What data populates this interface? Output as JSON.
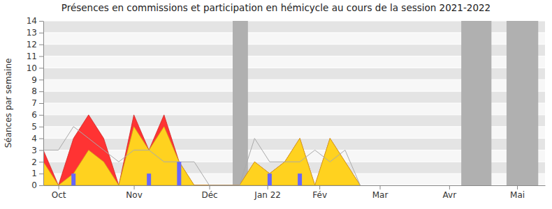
{
  "chart_data": {
    "type": "area",
    "title": "Présences en commissions et participation en hémicycle au cours de la session 2021-2022",
    "y_label": "Séances par semaine",
    "x": [
      0,
      1,
      2,
      3,
      4,
      5,
      6,
      7,
      8,
      9,
      10,
      11,
      12,
      13,
      14,
      15,
      16,
      17,
      18,
      19,
      20,
      21
    ],
    "xlim": [
      0,
      33.25
    ],
    "xticks": [
      {
        "value": 1,
        "label": "Oct"
      },
      {
        "value": 6,
        "label": "Nov"
      },
      {
        "value": 11,
        "label": "Déc"
      },
      {
        "value": 14.85,
        "label": "Jan 22"
      },
      {
        "value": 18.3,
        "label": "Fév"
      },
      {
        "value": 22.3,
        "label": "Mar"
      },
      {
        "value": 26.9,
        "label": "Avr"
      },
      {
        "value": 31.4,
        "label": "Mai"
      }
    ],
    "ylim": [
      0,
      14
    ],
    "yticks": [
      0,
      1,
      2,
      3,
      4,
      5,
      6,
      7,
      8,
      9,
      10,
      11,
      12,
      13,
      14
    ],
    "grid": true,
    "shaded_periods": [
      [
        12.55,
        13.56
      ],
      [
        27.7,
        29.7
      ],
      [
        30.7,
        32.8
      ]
    ],
    "series": [
      {
        "type": "area",
        "color": "#ff3333",
        "values": [
          3,
          0,
          4,
          6,
          4,
          0,
          6,
          3,
          6,
          2,
          0,
          0,
          0,
          0,
          2,
          1,
          2,
          4,
          0,
          4,
          2,
          0
        ]
      },
      {
        "type": "area",
        "color": "#ffd21f",
        "values": [
          2,
          0,
          1,
          3,
          2,
          0,
          5,
          3,
          5,
          2,
          0,
          0,
          0,
          0,
          2,
          1,
          2,
          4,
          0,
          4,
          2,
          0
        ]
      },
      {
        "type": "line",
        "color": "#aaaaaa",
        "values": [
          3,
          3,
          5,
          4,
          3,
          2,
          3,
          3,
          2,
          2,
          2,
          0,
          0,
          0,
          4,
          2,
          2,
          2,
          3,
          2,
          3,
          0
        ]
      },
      {
        "type": "bar",
        "color": "#6666ff",
        "values": [
          0,
          0,
          1,
          0,
          0,
          0,
          0,
          1,
          0,
          2,
          0,
          0,
          0,
          0,
          0,
          1,
          0,
          1,
          0,
          0,
          0,
          0
        ]
      }
    ]
  }
}
